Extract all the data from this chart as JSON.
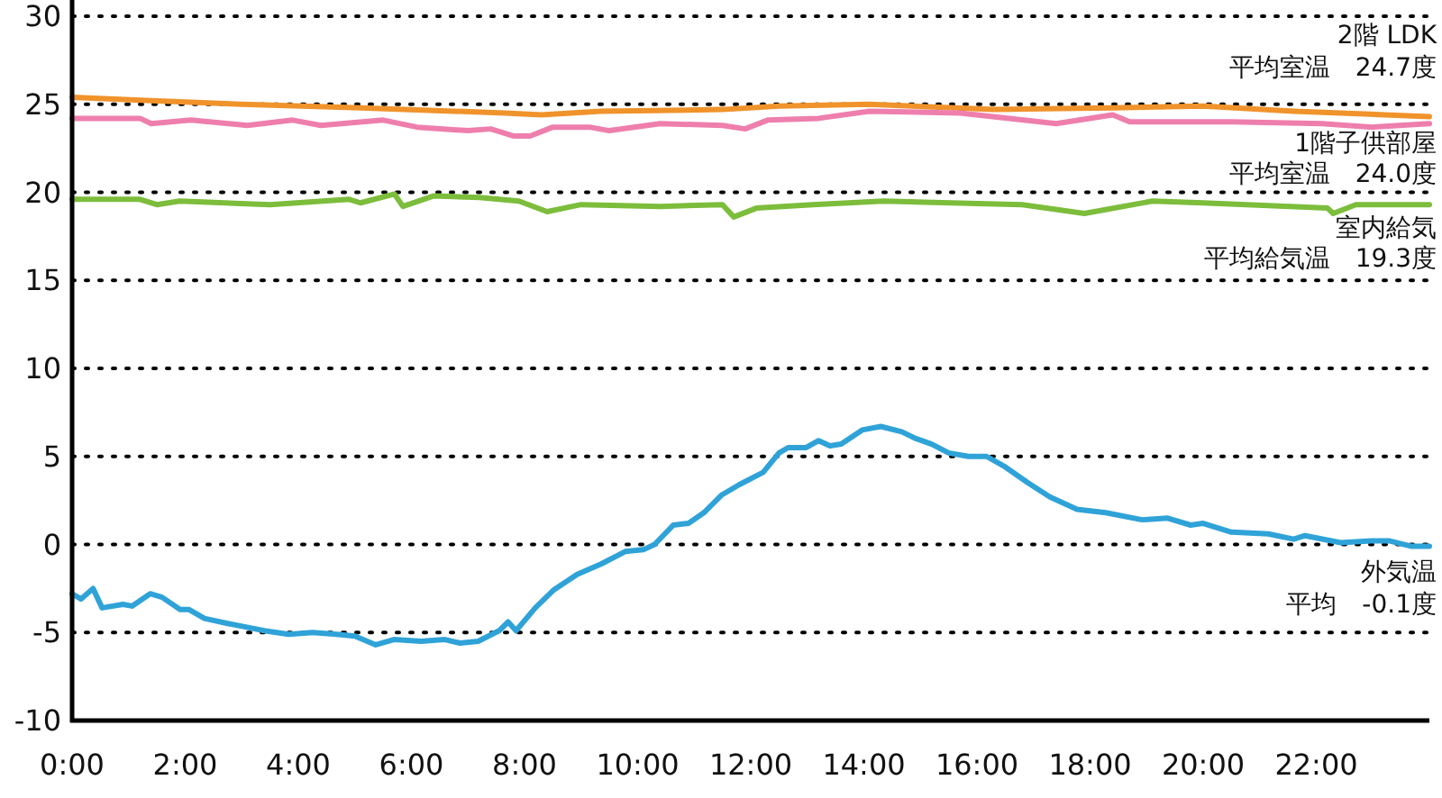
{
  "chart_data": {
    "type": "line",
    "xlim": [
      0,
      24
    ],
    "ylim": [
      -10,
      30
    ],
    "xticks": [
      {
        "value": 0,
        "label": "0:00"
      },
      {
        "value": 2,
        "label": "2:00"
      },
      {
        "value": 4,
        "label": "4:00"
      },
      {
        "value": 6,
        "label": "6:00"
      },
      {
        "value": 8,
        "label": "8:00"
      },
      {
        "value": 10,
        "label": "10:00"
      },
      {
        "value": 12,
        "label": "12:00"
      },
      {
        "value": 14,
        "label": "14:00"
      },
      {
        "value": 16,
        "label": "16:00"
      },
      {
        "value": 18,
        "label": "18:00"
      },
      {
        "value": 20,
        "label": "20:00"
      },
      {
        "value": 22,
        "label": "22:00"
      }
    ],
    "yticks": [
      -10,
      -5,
      0,
      5,
      10,
      15,
      20,
      25,
      30
    ],
    "grid": "y",
    "marker": "none",
    "line_style": "solid",
    "annotations": [
      "平均室温　24.7度",
      "平均室温　24.0度",
      "平均給気温　19.3度",
      "平均　-0.1度"
    ],
    "series": [
      {
        "name": "2階 LDK",
        "color": "#f0932b",
        "x": [
          0,
          1.4,
          3.0,
          5.1,
          7.65,
          8.3,
          9.35,
          11.5,
          12.5,
          14.1,
          16.3,
          18.4,
          20,
          21.6,
          24
        ],
        "values": [
          25.4,
          25.2,
          25.0,
          24.8,
          24.5,
          24.4,
          24.6,
          24.7,
          24.9,
          25.0,
          24.7,
          24.8,
          24.9,
          24.6,
          24.3
        ]
      },
      {
        "name": "1階子供部屋",
        "color": "#ee7fad",
        "x": [
          0,
          1.2,
          1.4,
          2.1,
          3.1,
          3.9,
          4.4,
          5.5,
          6.1,
          7.0,
          7.4,
          7.8,
          8.1,
          8.5,
          9.15,
          9.5,
          10.4,
          11.5,
          11.9,
          12.3,
          13.2,
          14.1,
          15.7,
          17.4,
          18.4,
          18.7,
          20.5,
          22.1,
          23.0,
          24
        ],
        "values": [
          24.2,
          24.2,
          23.9,
          24.1,
          23.8,
          24.1,
          23.8,
          24.1,
          23.7,
          23.5,
          23.6,
          23.2,
          23.2,
          23.7,
          23.7,
          23.5,
          23.9,
          23.8,
          23.6,
          24.1,
          24.2,
          24.6,
          24.5,
          23.9,
          24.4,
          24.0,
          24.0,
          23.9,
          23.7,
          23.9
        ]
      },
      {
        "name": "室内給気",
        "color": "#7cbd3b",
        "x": [
          0,
          1.2,
          1.5,
          1.9,
          3.5,
          4.9,
          5.1,
          5.7,
          5.85,
          6.4,
          7.2,
          7.9,
          8.4,
          9.0,
          10.4,
          11.5,
          11.7,
          12.1,
          13.1,
          14.35,
          16.8,
          17.9,
          19.1,
          20,
          22.2,
          22.3,
          22.7,
          24
        ],
        "values": [
          19.6,
          19.6,
          19.3,
          19.5,
          19.3,
          19.6,
          19.4,
          19.9,
          19.2,
          19.8,
          19.7,
          19.5,
          18.9,
          19.3,
          19.2,
          19.3,
          18.6,
          19.1,
          19.3,
          19.5,
          19.3,
          18.8,
          19.5,
          19.4,
          19.1,
          18.8,
          19.3,
          19.3
        ]
      },
      {
        "name": "外気温",
        "color": "#2fa3d8",
        "x": [
          0,
          0.16,
          0.37,
          0.53,
          0.9,
          1.06,
          1.38,
          1.59,
          1.91,
          2.07,
          2.34,
          2.77,
          3.09,
          3.4,
          3.83,
          4.25,
          4.68,
          5.0,
          5.37,
          5.69,
          6.17,
          6.59,
          6.86,
          7.18,
          7.55,
          7.71,
          7.85,
          8.19,
          8.51,
          8.93,
          9.36,
          9.78,
          10.1,
          10.3,
          10.63,
          10.9,
          11.17,
          11.48,
          11.8,
          12.22,
          12.5,
          12.66,
          12.98,
          13.2,
          13.4,
          13.6,
          13.97,
          14.3,
          14.67,
          14.93,
          15.2,
          15.5,
          15.85,
          16.17,
          16.5,
          16.9,
          17.29,
          17.77,
          18.28,
          18.92,
          19.36,
          19.78,
          20.0,
          20.5,
          21.15,
          21.6,
          21.8,
          22.43,
          22.97,
          23.3,
          23.67,
          24.0
        ],
        "values": [
          -2.8,
          -3.1,
          -2.5,
          -3.6,
          -3.4,
          -3.5,
          -2.8,
          -3.0,
          -3.7,
          -3.7,
          -4.2,
          -4.5,
          -4.7,
          -4.9,
          -5.1,
          -5.0,
          -5.1,
          -5.2,
          -5.7,
          -5.4,
          -5.5,
          -5.4,
          -5.6,
          -5.5,
          -4.9,
          -4.4,
          -4.9,
          -3.6,
          -2.6,
          -1.7,
          -1.1,
          -0.4,
          -0.3,
          0.0,
          1.1,
          1.2,
          1.8,
          2.8,
          3.4,
          4.1,
          5.2,
          5.5,
          5.5,
          5.9,
          5.6,
          5.7,
          6.5,
          6.7,
          6.4,
          6.0,
          5.7,
          5.2,
          5.0,
          5.0,
          4.4,
          3.5,
          2.7,
          2.0,
          1.8,
          1.4,
          1.5,
          1.1,
          1.2,
          0.7,
          0.6,
          0.3,
          0.5,
          0.1,
          0.2,
          0.2,
          -0.1,
          -0.1
        ]
      }
    ]
  }
}
